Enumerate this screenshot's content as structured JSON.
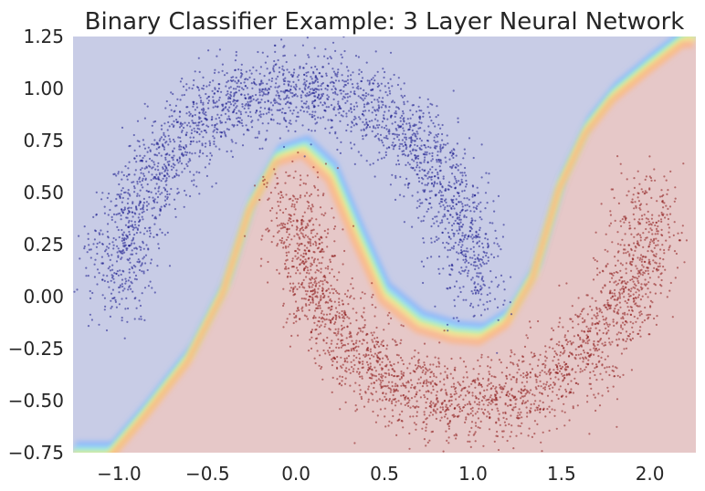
{
  "chart_data": {
    "type": "scatter",
    "title": "Binary Classifier Example: 3 Layer Neural Network",
    "xlabel": "",
    "ylabel": "",
    "xlim": [
      -1.26,
      2.26
    ],
    "ylim": [
      -0.75,
      1.25
    ],
    "x_ticks": [
      "−1.0",
      "−0.5",
      "0.0",
      "0.5",
      "1.0",
      "1.5",
      "2.0"
    ],
    "x_tick_values": [
      -1.0,
      -0.5,
      0.0,
      0.5,
      1.0,
      1.5,
      2.0
    ],
    "y_ticks": [
      "1.25",
      "1.00",
      "0.75",
      "0.50",
      "0.25",
      "0.00",
      "−0.25",
      "−0.50",
      "−0.75"
    ],
    "y_tick_values": [
      1.25,
      1.0,
      0.75,
      0.5,
      0.25,
      0.0,
      -0.25,
      -0.5,
      -0.75
    ],
    "grid": false,
    "background": "decision-region",
    "series": [
      {
        "class": 0,
        "color": "#1a1a8c",
        "region_color": "#c8cce6",
        "shape": "upper-moon",
        "center": [
          0.0,
          0.0
        ],
        "radius": 1.0,
        "noise": 0.1
      },
      {
        "class": 1,
        "color": "#8c1a1a",
        "region_color": "#e6c8c8",
        "shape": "lower-moon",
        "center": [
          1.0,
          0.5
        ],
        "radius": 1.0,
        "noise": 0.1
      }
    ],
    "decision_boundary": {
      "x": [
        -1.05,
        -0.85,
        -0.6,
        -0.4,
        -0.25,
        -0.1,
        0.05,
        0.2,
        0.35,
        0.5,
        0.7,
        0.9,
        1.05,
        1.2,
        1.35,
        1.5,
        1.65,
        1.8,
        2.0,
        2.2
      ],
      "y": [
        -0.75,
        -0.55,
        -0.28,
        0.05,
        0.45,
        0.68,
        0.72,
        0.6,
        0.3,
        0.02,
        -0.12,
        -0.17,
        -0.18,
        -0.1,
        0.12,
        0.55,
        0.82,
        0.98,
        1.12,
        1.25
      ]
    }
  }
}
